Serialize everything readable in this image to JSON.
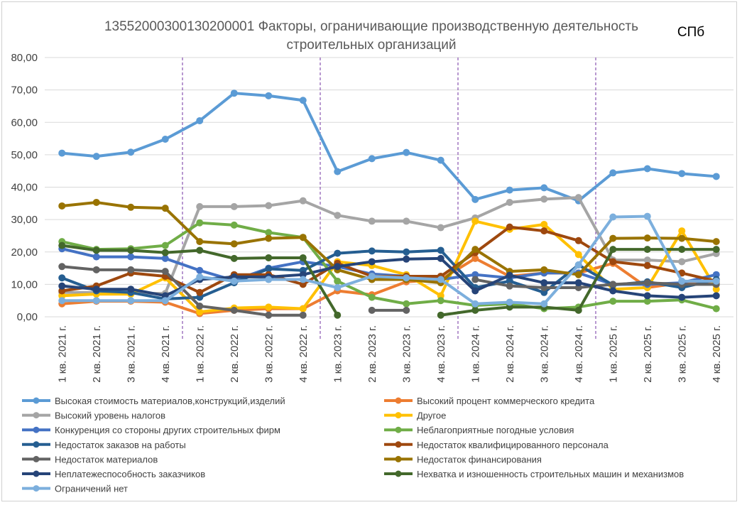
{
  "chart_data": {
    "type": "line",
    "title": "1355200030013020000​1 Факторы, ограничивающие производственную деятельность строительных организаций",
    "title_lines": [
      "13552000300130200001 Факторы, ограничивающие производственную деятельность",
      "строительных организаций"
    ],
    "corner_label": "СПб",
    "ylim": [
      0,
      80
    ],
    "y_ticks": [
      "0,00",
      "10,00",
      "20,00",
      "30,00",
      "40,00",
      "50,00",
      "60,00",
      "70,00",
      "80,00"
    ],
    "grid": true,
    "legend_position": "bottom",
    "year_separators_after": [
      3,
      7,
      11,
      15
    ],
    "categories": [
      "1 кв. 2021 г.",
      "2 кв. 2021 г.",
      "3 кв. 2021 г.",
      "4 кв. 2021 г.",
      "1 кв. 2022 г.",
      "2 кв. 2022 г.",
      "3 кв. 2022 г.",
      "4 кв. 2022 г.",
      "1 кв. 2023 г.",
      "2 кв. 2023 г.",
      "3 кв. 2023 г.",
      "4 кв. 2023 г.",
      "1 кв. 2024 г.",
      "2 кв. 2024 г.",
      "3 кв. 2024 г.",
      "4 кв. 2024 г.",
      "1 кв. 2025 г.",
      "2 кв. 2025 г.",
      "3 кв. 2025 г.",
      "4 кв. 2025 г."
    ],
    "series": [
      {
        "name": "Высокая стоимость материалов,конструкций,изделий",
        "color": "#5B9BD5",
        "values": [
          50.5,
          49.5,
          50.8,
          54.8,
          60.5,
          69,
          68.2,
          66.8,
          44.8,
          48.8,
          50.7,
          48.3,
          36.2,
          39.1,
          39.8,
          35.8,
          44.4,
          45.7,
          44.2,
          43.3
        ]
      },
      {
        "name": "Высокий процент коммерческого кредита",
        "color": "#ED7D31",
        "values": [
          4,
          4.8,
          4.8,
          4.5,
          1,
          2,
          2.5,
          2.5,
          8,
          6.8,
          10.8,
          11.5,
          18,
          12.5,
          13.5,
          13.5,
          16.5,
          9,
          10.5,
          10.5
        ]
      },
      {
        "name": "Высокий уровень налогов",
        "color": "#A5A5A5",
        "values": [
          7.5,
          7.5,
          7.2,
          7.2,
          34,
          34,
          34.3,
          35.8,
          31.3,
          29.5,
          29.5,
          27.5,
          30.5,
          35.3,
          36.3,
          36.8,
          17.5,
          17.5,
          17,
          19.5
        ]
      },
      {
        "name": "Другое",
        "color": "#FFC000",
        "values": [
          6.5,
          7,
          7,
          12,
          1.5,
          2.7,
          3,
          2.5,
          17,
          15.8,
          13,
          6.5,
          29.5,
          27,
          28.5,
          19.2,
          8.5,
          9,
          26.5,
          8.5
        ]
      },
      {
        "name": "Конкуренция со стороны других строительных фирм",
        "color": "#4472C4",
        "values": [
          21,
          18.5,
          18.5,
          18,
          14.3,
          11.2,
          15,
          17,
          15.5,
          13.2,
          12.5,
          11.5,
          13,
          12,
          13.5,
          13.5,
          10,
          10,
          10.5,
          13
        ]
      },
      {
        "name": "Неблагоприятные погодные условия",
        "color": "#70AD47",
        "values": [
          23.2,
          20.8,
          21,
          22,
          29,
          28.3,
          26,
          24.5,
          11,
          6,
          4,
          5,
          3.5,
          4,
          2.5,
          3,
          4.8,
          4.8,
          5.2,
          2.5
        ]
      },
      {
        "name": "Недостаток заказов на работы",
        "color": "#255E91",
        "values": [
          12,
          8,
          7.5,
          5.5,
          6,
          10.5,
          14.8,
          14.3,
          19.6,
          20.3,
          20,
          20.5,
          9,
          11,
          7.5,
          16,
          9.8,
          10.8,
          9,
          11.5
        ]
      },
      {
        "name": "Недостаток квалифицированного персонала",
        "color": "#9E480E",
        "values": [
          8,
          9.5,
          13.5,
          12.5,
          7.5,
          13,
          13,
          10,
          16.5,
          12.5,
          12.5,
          12.5,
          19.8,
          27.7,
          26.5,
          23.5,
          17,
          15.8,
          13.5,
          11
        ]
      },
      {
        "name": "Недостаток материалов",
        "color": "#636363",
        "values": [
          15.5,
          14.5,
          14.5,
          14,
          3.3,
          2,
          0.5,
          0.5,
          null,
          2,
          2,
          null,
          11.5,
          9.5,
          9,
          9,
          10,
          10.5,
          10,
          10
        ]
      },
      {
        "name": "Недостаток финансирования",
        "color": "#997300",
        "values": [
          34.2,
          35.3,
          33.8,
          33.5,
          23.2,
          22.5,
          24.2,
          24.5,
          14.5,
          11.5,
          11.5,
          10.5,
          20.8,
          14,
          14.5,
          13,
          24.2,
          24.3,
          24.2,
          23.2
        ]
      },
      {
        "name": "Неплатежеспособность заказчиков",
        "color": "#264478",
        "values": [
          9.5,
          8.5,
          8.5,
          6.5,
          11.5,
          12.3,
          12.3,
          13,
          15.5,
          17,
          17.8,
          18,
          8,
          12.8,
          10.5,
          10.5,
          8,
          6.5,
          6,
          6.5
        ]
      },
      {
        "name": "Нехватка и изношенность строительных машин и механизмов",
        "color": "#43682B",
        "values": [
          22,
          20.5,
          20.5,
          19.8,
          20.5,
          18,
          18.2,
          18.2,
          0.5,
          null,
          null,
          0.5,
          2,
          3,
          3,
          2,
          20.8,
          20.8,
          20.8,
          20.8
        ]
      },
      {
        "name": "Ограничений нет",
        "color": "#7CAFDD",
        "values": [
          5,
          5,
          5,
          5,
          12.3,
          11,
          11.5,
          11.5,
          9,
          12.5,
          12,
          11.5,
          4,
          4.5,
          4,
          16,
          30.8,
          31,
          11,
          11
        ]
      }
    ]
  }
}
